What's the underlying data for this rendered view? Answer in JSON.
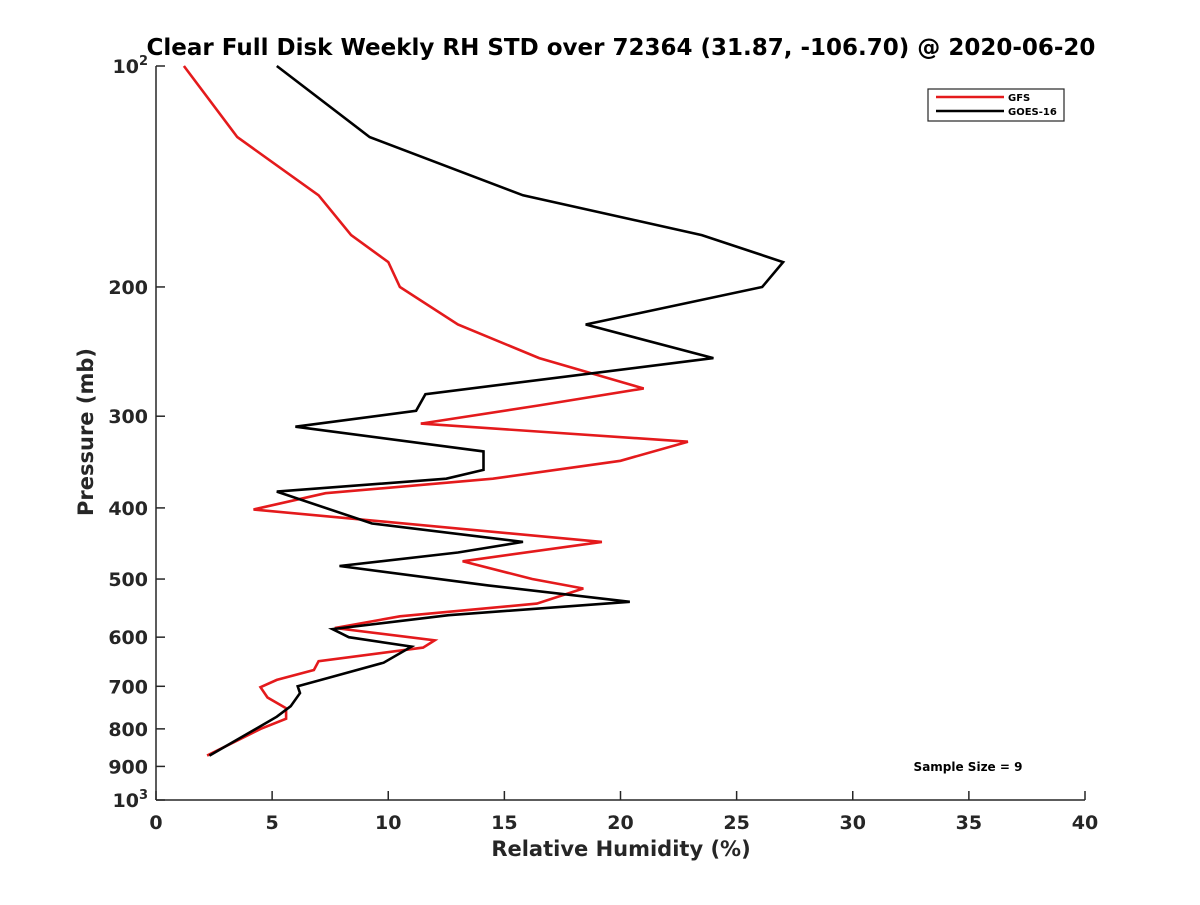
{
  "chart_data": {
    "type": "line",
    "title": "Clear Full Disk Weekly RH STD over 72364 (31.87, -106.70) @ 2020-06-20",
    "xlabel": "Relative Humidity (%)",
    "ylabel": "Pressure (mb)",
    "xlim": [
      0,
      40
    ],
    "ylim": [
      100,
      1000
    ],
    "yscale": "log",
    "y_reversed": true,
    "grid": false,
    "legend_position": "top-right",
    "x_ticks": [
      "0",
      "5",
      "10",
      "15",
      "20",
      "25",
      "30",
      "35",
      "40"
    ],
    "x_tick_values": [
      0,
      5,
      10,
      15,
      20,
      25,
      30,
      35,
      40
    ],
    "y_ticks": [
      {
        "value": 100,
        "base": "10",
        "exp": "2"
      },
      {
        "value": 200,
        "label": "200"
      },
      {
        "value": 300,
        "label": "300"
      },
      {
        "value": 400,
        "label": "400"
      },
      {
        "value": 500,
        "label": "500"
      },
      {
        "value": 600,
        "label": "600"
      },
      {
        "value": 700,
        "label": "700"
      },
      {
        "value": 800,
        "label": "800"
      },
      {
        "value": 900,
        "label": "900"
      },
      {
        "value": 1000,
        "base": "10",
        "exp": "3"
      }
    ],
    "series": [
      {
        "name": "GFS",
        "color": "#e41a1c",
        "points": [
          [
            1.2,
            100
          ],
          [
            3.5,
            125
          ],
          [
            7.0,
            150
          ],
          [
            8.4,
            170
          ],
          [
            10.0,
            185
          ],
          [
            10.5,
            200
          ],
          [
            13.0,
            225
          ],
          [
            16.5,
            250
          ],
          [
            21.0,
            275
          ],
          [
            16.5,
            290
          ],
          [
            11.4,
            307
          ],
          [
            22.9,
            325
          ],
          [
            20.0,
            345
          ],
          [
            14.5,
            365
          ],
          [
            7.3,
            382
          ],
          [
            4.2,
            402
          ],
          [
            19.2,
            445
          ],
          [
            13.2,
            473
          ],
          [
            16.2,
            500
          ],
          [
            18.4,
            515
          ],
          [
            16.4,
            540
          ],
          [
            10.5,
            562
          ],
          [
            7.7,
            583
          ],
          [
            12.0,
            606
          ],
          [
            11.5,
            620
          ],
          [
            7.0,
            647
          ],
          [
            6.8,
            665
          ],
          [
            5.2,
            686
          ],
          [
            4.5,
            702
          ],
          [
            4.8,
            725
          ],
          [
            5.6,
            750
          ],
          [
            5.6,
            775
          ],
          [
            4.5,
            800
          ],
          [
            2.2,
            870
          ]
        ]
      },
      {
        "name": "GOES-16",
        "color": "#000000",
        "points": [
          [
            5.2,
            100
          ],
          [
            9.2,
            125
          ],
          [
            15.8,
            150
          ],
          [
            23.5,
            170
          ],
          [
            27.0,
            185
          ],
          [
            26.1,
            200
          ],
          [
            18.5,
            225
          ],
          [
            24.0,
            250
          ],
          [
            11.6,
            280
          ],
          [
            11.2,
            295
          ],
          [
            6.0,
            310
          ],
          [
            14.1,
            335
          ],
          [
            14.1,
            355
          ],
          [
            12.5,
            365
          ],
          [
            5.2,
            380
          ],
          [
            9.3,
            420
          ],
          [
            15.8,
            445
          ],
          [
            13.0,
            460
          ],
          [
            7.9,
            480
          ],
          [
            14.3,
            510
          ],
          [
            20.4,
            537
          ],
          [
            12.6,
            560
          ],
          [
            7.6,
            585
          ],
          [
            8.3,
            600
          ],
          [
            11.0,
            618
          ],
          [
            9.8,
            650
          ],
          [
            7.4,
            682
          ],
          [
            6.1,
            700
          ],
          [
            6.2,
            715
          ],
          [
            5.8,
            745
          ],
          [
            5.2,
            770
          ],
          [
            4.3,
            800
          ],
          [
            2.3,
            870
          ]
        ]
      }
    ],
    "annotation": "Sample Size = 9"
  }
}
